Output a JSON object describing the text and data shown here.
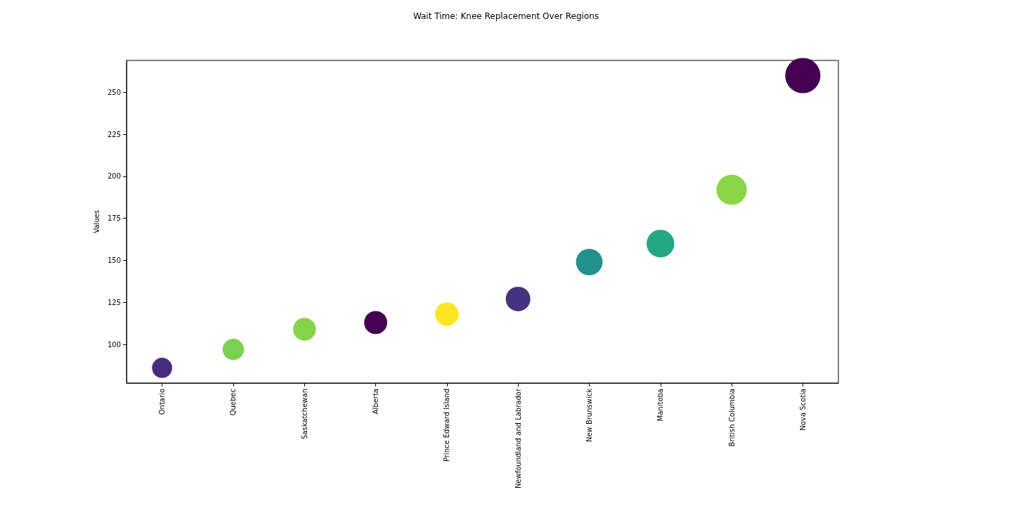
{
  "chart_data": {
    "type": "bubble",
    "title": "Wait Time: Knee Replacement Over Regions",
    "ylabel": "Values",
    "categories": [
      "Ontario",
      "Quebec",
      "Saskatchewan",
      "Alberta",
      "Prince Edward Island",
      "Newfoundland and Labrador",
      "New Brunswick",
      "Manitoba",
      "British Columbia",
      "Nova Scotia"
    ],
    "values": [
      86,
      97,
      109,
      113,
      118,
      127,
      149,
      160,
      192,
      260
    ],
    "sizes": [
      0.33,
      0.37,
      0.42,
      0.43,
      0.45,
      0.49,
      0.57,
      0.62,
      0.74,
      1
    ],
    "colors": [
      "#472d7b",
      "#7ad151",
      "#86d549",
      "#440154",
      "#fde725",
      "#46327e",
      "#21918c",
      "#22a884",
      "#8bd646",
      "#440154"
    ],
    "ylim": [
      77,
      269
    ],
    "yticks": [
      100,
      125,
      150,
      175,
      200,
      225,
      250
    ],
    "grid": false
  }
}
